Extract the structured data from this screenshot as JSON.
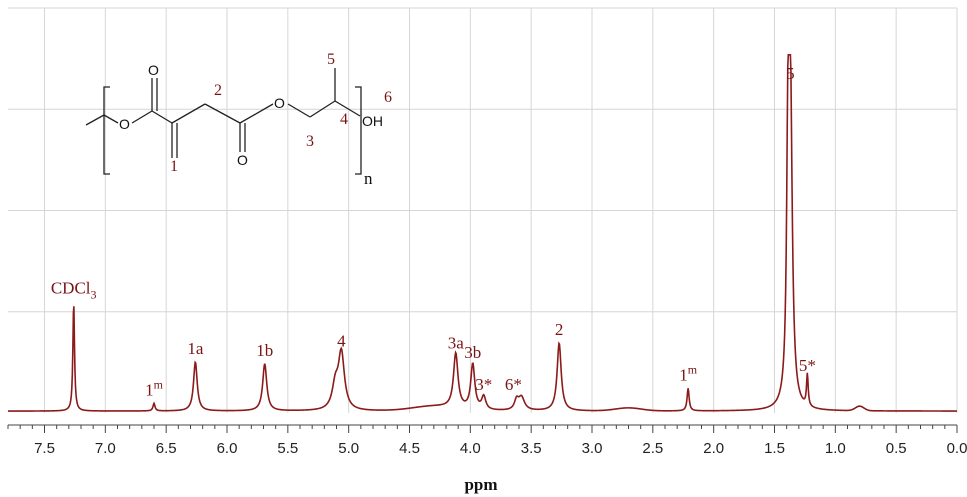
{
  "chart_data": {
    "type": "line",
    "xlabel": "ppm",
    "ylabel": "",
    "xlim": [
      7.8,
      0.0
    ],
    "ylim": [
      0,
      1.0
    ],
    "x_ticks": [
      "7.5",
      "7.0",
      "6.5",
      "6.0",
      "5.5",
      "5.0",
      "4.5",
      "4.0",
      "3.5",
      "3.0",
      "2.5",
      "2.0",
      "1.5",
      "1.0",
      "0.5",
      "0.0"
    ],
    "grid": true,
    "line_color": "#8b1a1a",
    "peaks": [
      {
        "ppm": 7.26,
        "height": 0.29,
        "width": 0.008,
        "label": "CDCl",
        "label_sub": "3"
      },
      {
        "ppm": 6.6,
        "height": 0.02,
        "width": 0.01,
        "label": "1",
        "label_sup": "m"
      },
      {
        "ppm": 6.26,
        "height": 0.13,
        "width": 0.018,
        "label": "1a"
      },
      {
        "ppm": 5.69,
        "height": 0.125,
        "width": 0.02,
        "label": "1b"
      },
      {
        "ppm": 5.06,
        "height": 0.15,
        "width": 0.03,
        "label": "4"
      },
      {
        "ppm": 4.12,
        "height": 0.145,
        "width": 0.022,
        "label": "3a"
      },
      {
        "ppm": 3.98,
        "height": 0.12,
        "width": 0.02,
        "label": "3b"
      },
      {
        "ppm": 3.89,
        "height": 0.035,
        "width": 0.02,
        "label": "3*"
      },
      {
        "ppm": 3.58,
        "height": 0.035,
        "width": 0.03,
        "label": "6*"
      },
      {
        "ppm": 3.27,
        "height": 0.18,
        "width": 0.02,
        "label": "2"
      },
      {
        "ppm": 2.21,
        "height": 0.06,
        "width": 0.01,
        "label": "1",
        "label_sup": "m"
      },
      {
        "ppm": 1.37,
        "height": 0.86,
        "width": 0.018,
        "label": "5"
      },
      {
        "ppm": 1.23,
        "height": 0.085,
        "width": 0.008,
        "label": "5*"
      }
    ]
  },
  "structure": {
    "atoms": {
      "o_ester1": "O",
      "o_carbonyl1": "O",
      "o_carbonyl2": "O",
      "o_ester2": "O",
      "oh": "OH"
    },
    "numbers": {
      "n1": "1",
      "n2": "2",
      "n3": "3",
      "n4": "4",
      "n5": "5",
      "n6": "6"
    },
    "repeat": "n"
  }
}
